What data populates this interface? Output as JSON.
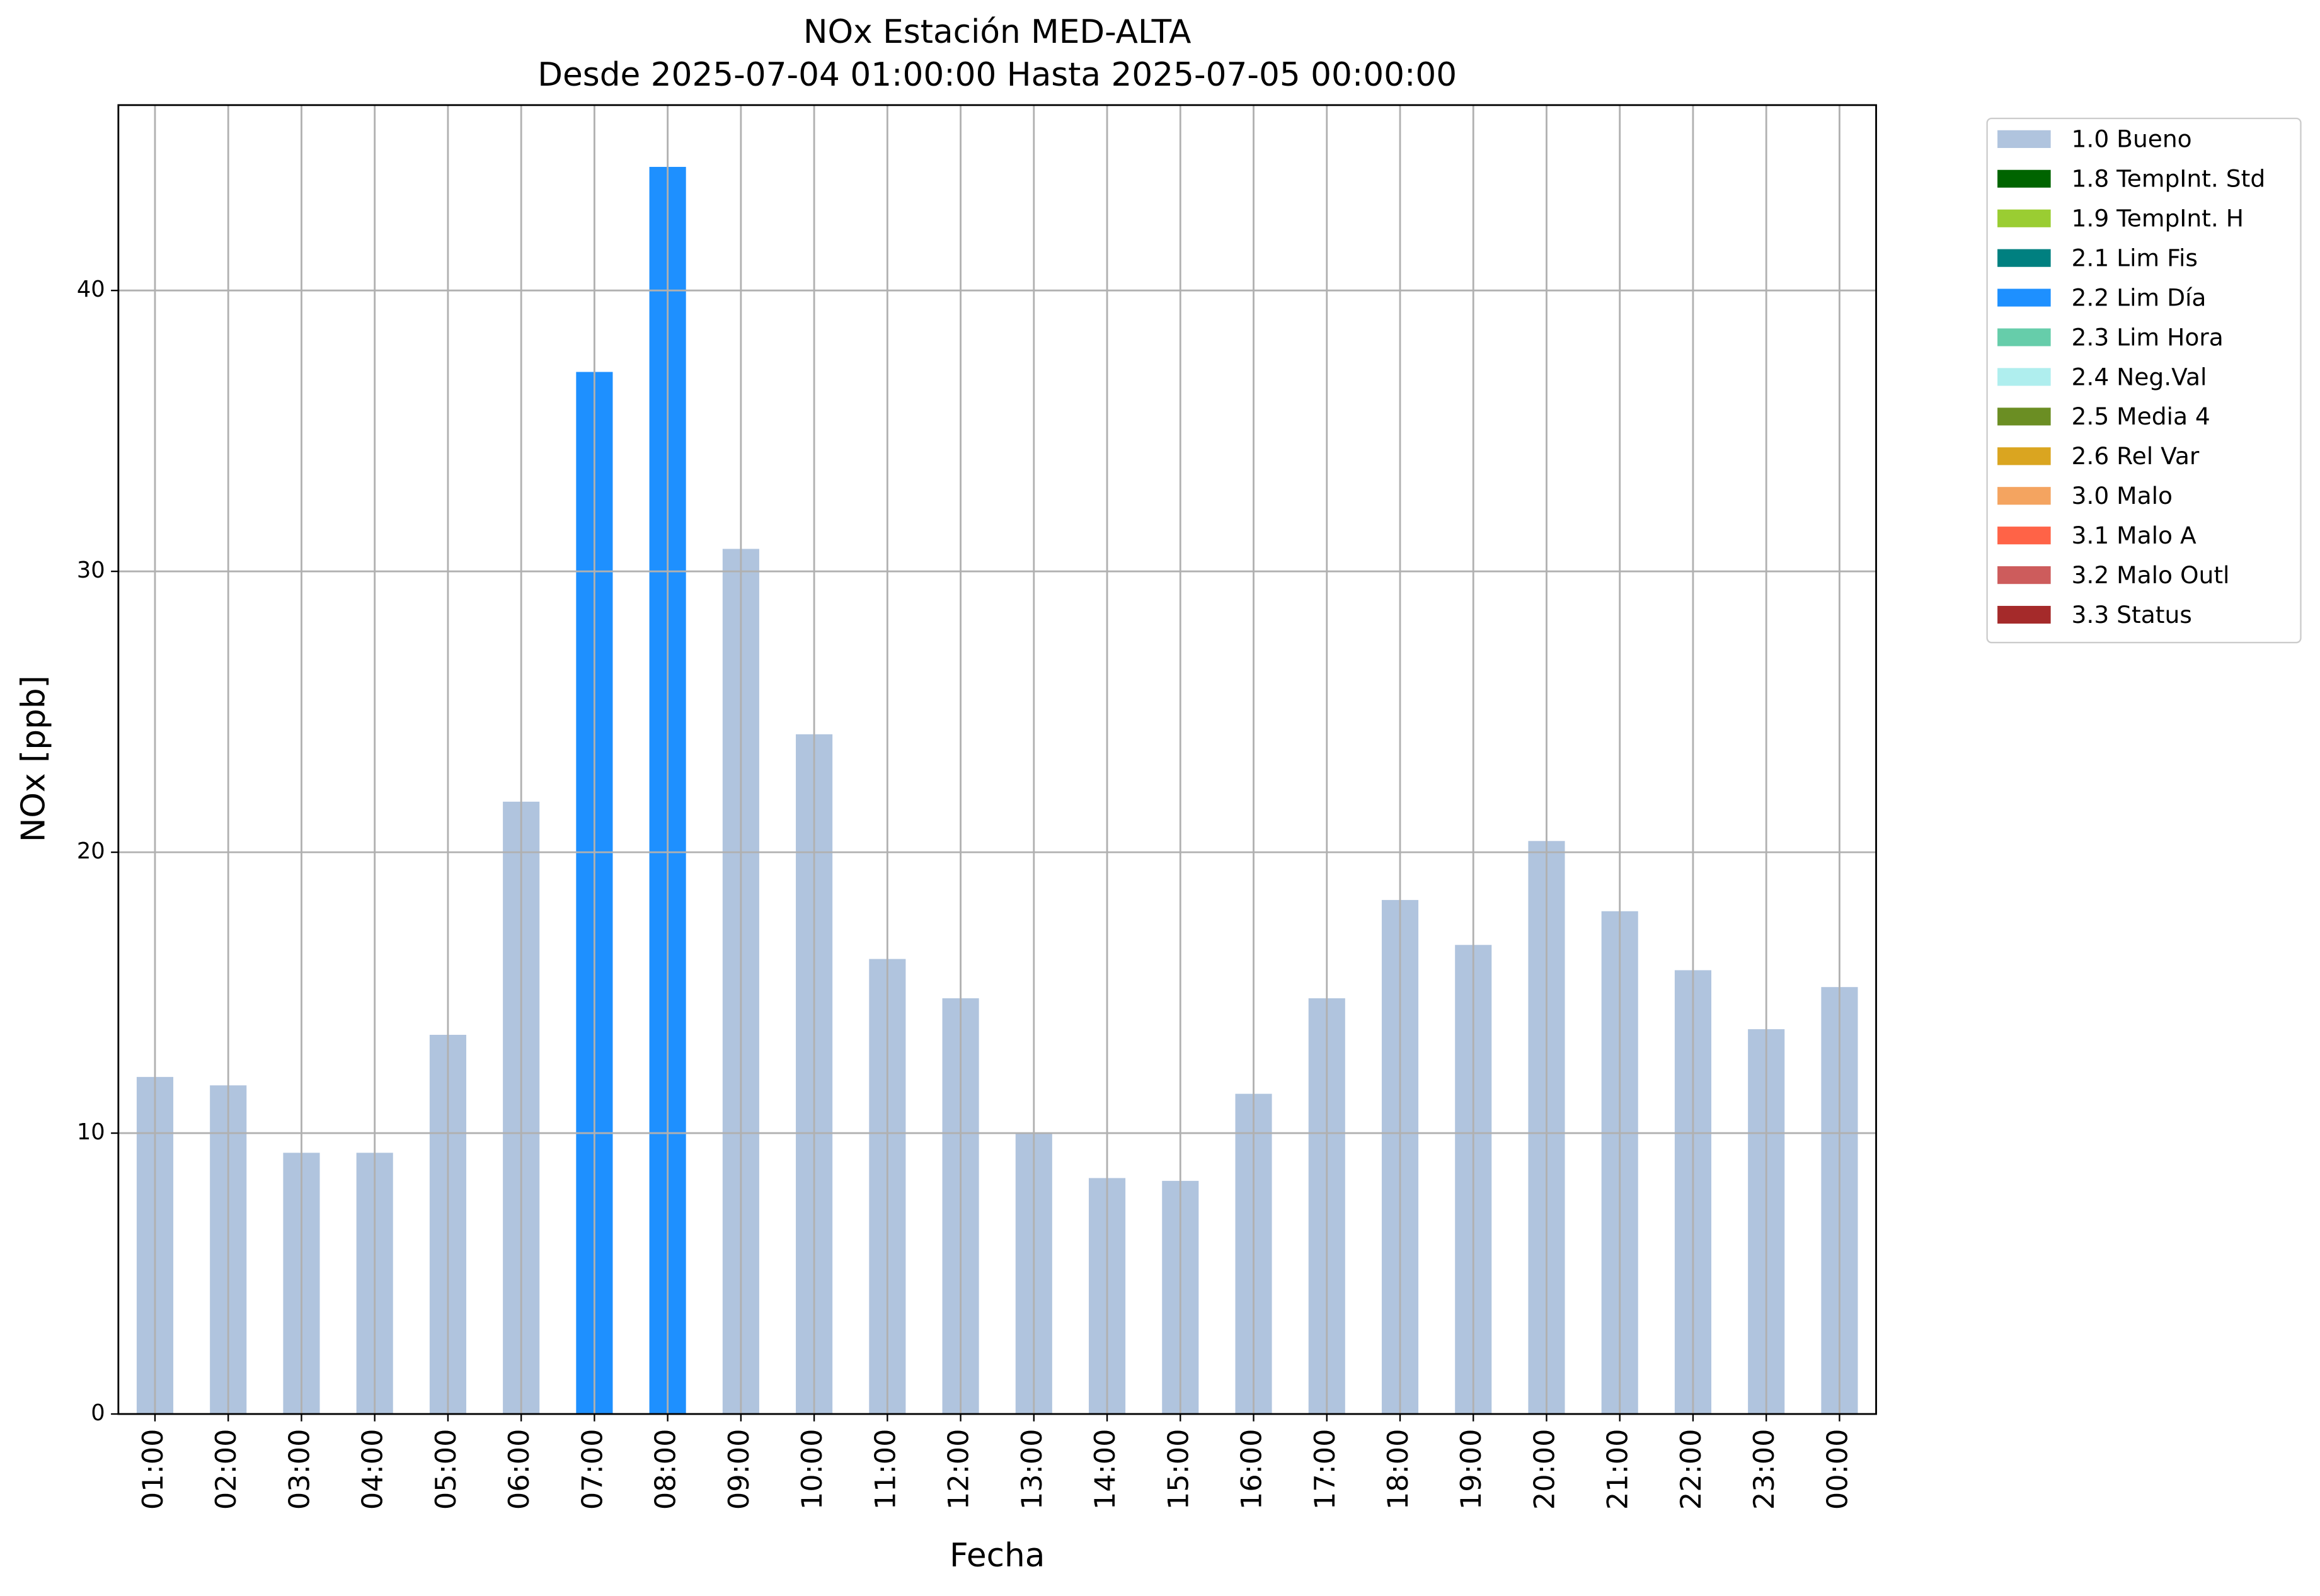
{
  "chart_data": {
    "type": "bar",
    "stacked": true,
    "title": "NOx Estación MED-ALTA",
    "subtitle": "Desde 2025-07-04 01:00:00 Hasta 2025-07-05 00:00:00",
    "x_label": "Fecha",
    "y_label": "NOx [ppb]",
    "categories": [
      "01:00",
      "02:00",
      "03:00",
      "04:00",
      "05:00",
      "06:00",
      "07:00",
      "08:00",
      "09:00",
      "10:00",
      "11:00",
      "12:00",
      "13:00",
      "14:00",
      "15:00",
      "16:00",
      "17:00",
      "18:00",
      "19:00",
      "20:00",
      "21:00",
      "22:00",
      "23:00",
      "00:00"
    ],
    "series": [
      {
        "name": "1.0 Bueno",
        "color": "#b0c4de",
        "values": [
          12.0,
          11.7,
          9.3,
          9.3,
          13.5,
          21.8,
          null,
          null,
          30.8,
          24.2,
          16.2,
          14.8,
          10.0,
          8.4,
          8.3,
          11.4,
          14.8,
          18.3,
          16.7,
          20.4,
          17.9,
          15.8,
          13.7,
          15.2
        ]
      },
      {
        "name": "1.8 TempInt. Std",
        "color": "#006400",
        "values": [
          null,
          null,
          null,
          null,
          null,
          null,
          null,
          null,
          null,
          null,
          null,
          null,
          null,
          null,
          null,
          null,
          null,
          null,
          null,
          null,
          null,
          null,
          null,
          null
        ]
      },
      {
        "name": "1.9 TempInt. H",
        "color": "#9acd32",
        "values": [
          null,
          null,
          null,
          null,
          null,
          null,
          null,
          null,
          null,
          null,
          null,
          null,
          null,
          null,
          null,
          null,
          null,
          null,
          null,
          null,
          null,
          null,
          null,
          null
        ]
      },
      {
        "name": "2.1 Lim Fis",
        "color": "#008080",
        "values": [
          null,
          null,
          null,
          null,
          null,
          null,
          null,
          null,
          null,
          null,
          null,
          null,
          null,
          null,
          null,
          null,
          null,
          null,
          null,
          null,
          null,
          null,
          null,
          null
        ]
      },
      {
        "name": "2.2 Lim Día",
        "color": "#1e90ff",
        "values": [
          null,
          null,
          null,
          null,
          null,
          null,
          37.1,
          44.4,
          null,
          null,
          null,
          null,
          null,
          null,
          null,
          null,
          null,
          null,
          null,
          null,
          null,
          null,
          null,
          null
        ]
      },
      {
        "name": "2.3 Lim Hora",
        "color": "#66cdaa",
        "values": [
          null,
          null,
          null,
          null,
          null,
          null,
          null,
          null,
          null,
          null,
          null,
          null,
          null,
          null,
          null,
          null,
          null,
          null,
          null,
          null,
          null,
          null,
          null,
          null
        ]
      },
      {
        "name": "2.4 Neg.Val",
        "color": "#afeeee",
        "values": [
          null,
          null,
          null,
          null,
          null,
          null,
          null,
          null,
          null,
          null,
          null,
          null,
          null,
          null,
          null,
          null,
          null,
          null,
          null,
          null,
          null,
          null,
          null,
          null
        ]
      },
      {
        "name": "2.5 Media 4",
        "color": "#6b8e23",
        "values": [
          null,
          null,
          null,
          null,
          null,
          null,
          null,
          null,
          null,
          null,
          null,
          null,
          null,
          null,
          null,
          null,
          null,
          null,
          null,
          null,
          null,
          null,
          null,
          null
        ]
      },
      {
        "name": "2.6 Rel Var",
        "color": "#daa520",
        "values": [
          null,
          null,
          null,
          null,
          null,
          null,
          null,
          null,
          null,
          null,
          null,
          null,
          null,
          null,
          null,
          null,
          null,
          null,
          null,
          null,
          null,
          null,
          null,
          null
        ]
      },
      {
        "name": "3.0 Malo",
        "color": "#f4a460",
        "values": [
          null,
          null,
          null,
          null,
          null,
          null,
          null,
          null,
          null,
          null,
          null,
          null,
          null,
          null,
          null,
          null,
          null,
          null,
          null,
          null,
          null,
          null,
          null,
          null
        ]
      },
      {
        "name": "3.1 Malo A",
        "color": "#ff6347",
        "values": [
          null,
          null,
          null,
          null,
          null,
          null,
          null,
          null,
          null,
          null,
          null,
          null,
          null,
          null,
          null,
          null,
          null,
          null,
          null,
          null,
          null,
          null,
          null,
          null
        ]
      },
      {
        "name": "3.2 Malo Outl",
        "color": "#cd5c5c",
        "values": [
          null,
          null,
          null,
          null,
          null,
          null,
          null,
          null,
          null,
          null,
          null,
          null,
          null,
          null,
          null,
          null,
          null,
          null,
          null,
          null,
          null,
          null,
          null,
          null
        ]
      },
      {
        "name": "3.3 Status",
        "color": "#a52a2a",
        "values": [
          null,
          null,
          null,
          null,
          null,
          null,
          null,
          null,
          null,
          null,
          null,
          null,
          null,
          null,
          null,
          null,
          null,
          null,
          null,
          null,
          null,
          null,
          null,
          null
        ]
      }
    ],
    "ylim": [
      0,
      46.6
    ],
    "yticks": [
      0,
      10,
      20,
      30,
      40
    ],
    "grid": true,
    "legend": "outside right"
  }
}
